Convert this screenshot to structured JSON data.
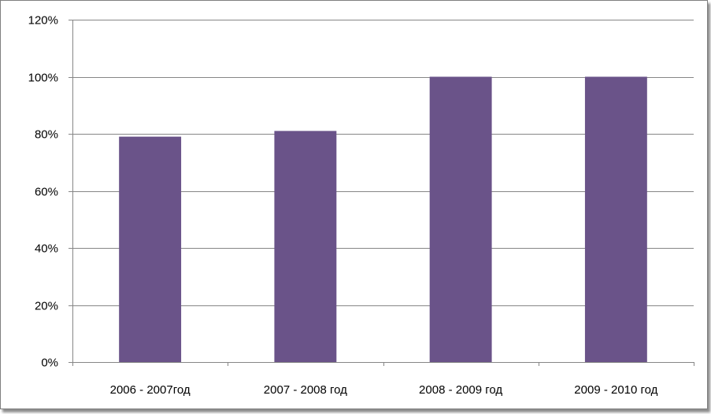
{
  "chart_data": {
    "type": "bar",
    "categories": [
      "2006 - 2007год",
      "2007 - 2008 год",
      "2008 - 2009 год",
      "2009 - 2010 год"
    ],
    "values": [
      79,
      81,
      100,
      100
    ],
    "y_ticks": [
      "0%",
      "20%",
      "40%",
      "60%",
      "80%",
      "100%",
      "120%"
    ],
    "ylim": [
      0,
      120
    ],
    "grid": true,
    "legend": "none",
    "bar_color": "#6a5389"
  }
}
